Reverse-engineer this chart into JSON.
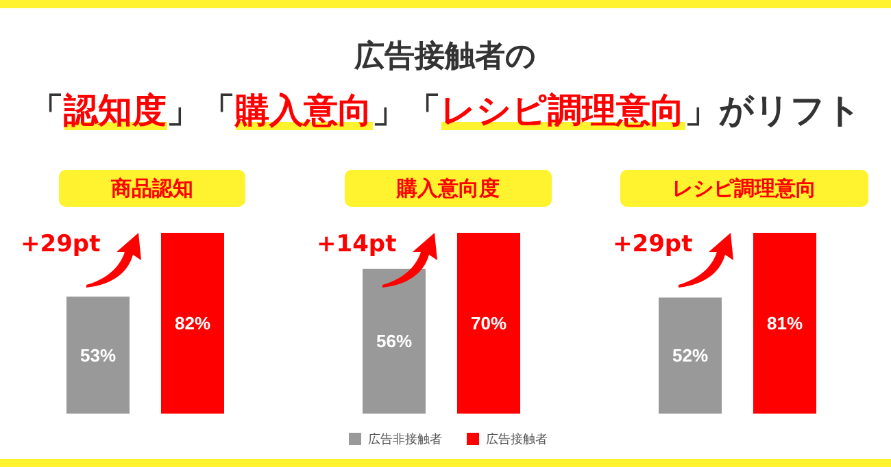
{
  "chart_data": [
    {
      "type": "other",
      "title": "広告接触者の",
      "subtitle": "「認知度」「購入意向」「レシピ調理意向」がリフト"
    },
    {
      "type": "bar",
      "title": "商品認知",
      "categories": [
        null
      ],
      "data_labels": true,
      "legend": false,
      "annotations": [
        "+29pt"
      ],
      "series": [
        {
          "color": "#999999",
          "values": [
            53
          ],
          "value_labels": [
            "53%"
          ]
        },
        {
          "color": "#ff0000",
          "values": [
            82
          ],
          "value_labels": [
            "82%"
          ]
        }
      ]
    },
    {
      "type": "bar",
      "title": "購入意向度",
      "categories": [
        null
      ],
      "data_labels": true,
      "legend": "bottom",
      "annotations": [
        "+14pt"
      ],
      "series": [
        {
          "name": "広告非接触者",
          "color": "#999999",
          "values": [
            56
          ],
          "value_labels": [
            "56%"
          ]
        },
        {
          "name": "広告接触者",
          "color": "#ff0000",
          "values": [
            70
          ],
          "value_labels": [
            "70%"
          ]
        }
      ]
    },
    {
      "type": "bar",
      "title": "レシピ調理意向",
      "categories": [
        null
      ],
      "data_labels": true,
      "legend": false,
      "annotations": [
        "+29pt"
      ],
      "series": [
        {
          "color": "#999999",
          "values": [
            52
          ],
          "value_labels": [
            "52%"
          ]
        },
        {
          "color": "#ff0000",
          "values": [
            81
          ],
          "value_labels": [
            "81%"
          ]
        }
      ]
    }
  ]
}
